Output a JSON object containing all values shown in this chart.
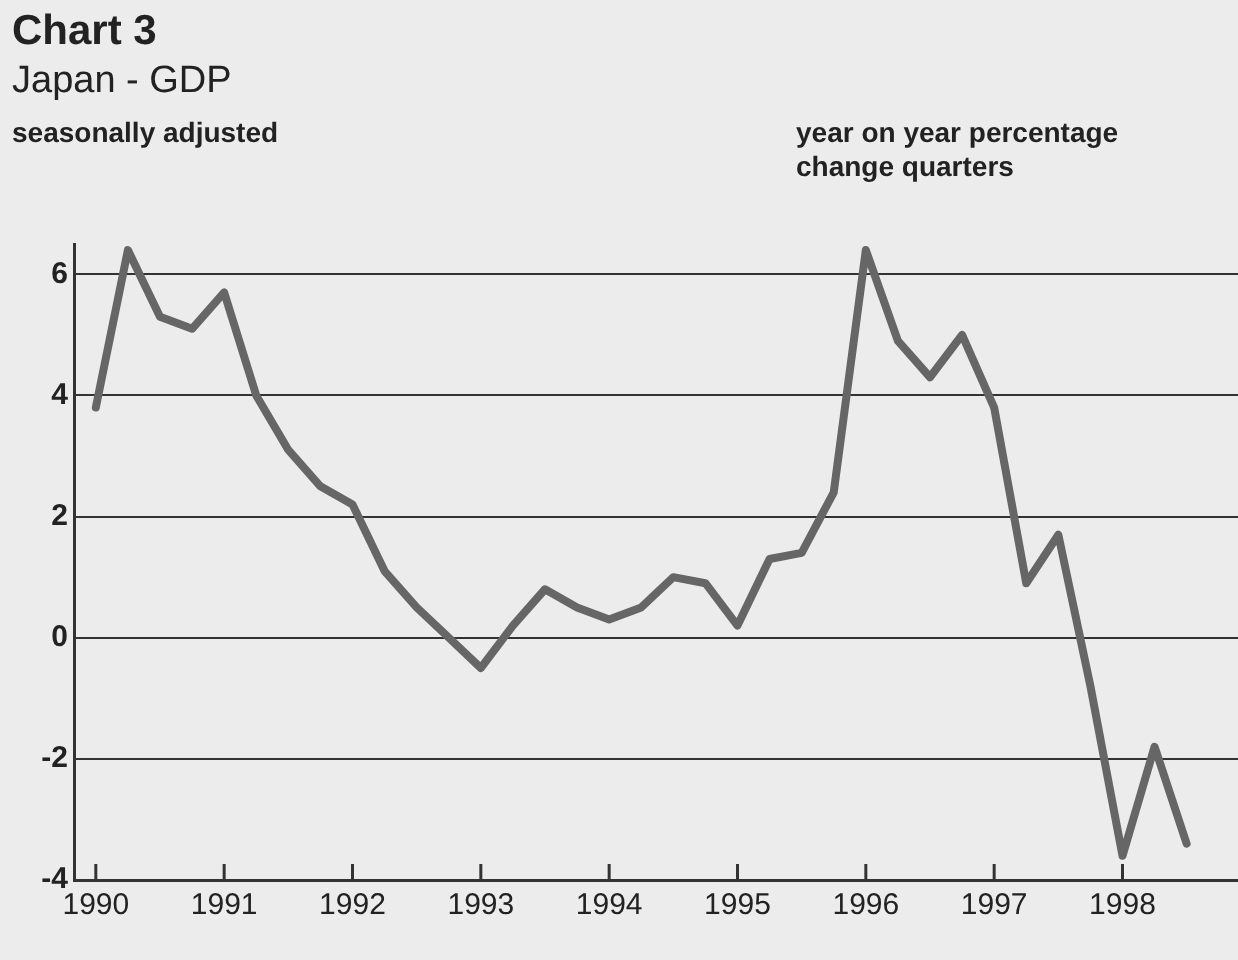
{
  "chart_data": {
    "type": "line",
    "title": "Chart 3",
    "subtitle": "Japan - GDP",
    "ylabel": "seasonally adjusted",
    "annotations": [
      "year on year percentage change quarters"
    ],
    "x": [
      1990,
      1990.25,
      1990.5,
      1990.75,
      1991,
      1991.25,
      1991.5,
      1991.75,
      1992,
      1992.25,
      1992.5,
      1992.75,
      1993,
      1993.25,
      1993.5,
      1993.75,
      1994,
      1994.25,
      1994.5,
      1994.75,
      1995,
      1995.25,
      1995.5,
      1995.75,
      1996,
      1996.25,
      1996.5,
      1996.75,
      1997,
      1997.25,
      1997.5,
      1997.75,
      1998,
      1998.25,
      1998.5
    ],
    "series": [
      {
        "color": "#666666",
        "values": [
          3.8,
          6.4,
          5.3,
          5.1,
          5.7,
          4.0,
          3.1,
          2.5,
          2.2,
          1.1,
          0.5,
          0.0,
          -0.5,
          0.2,
          0.8,
          0.5,
          0.3,
          0.5,
          1.0,
          0.9,
          0.2,
          1.3,
          1.4,
          2.4,
          6.4,
          4.9,
          4.3,
          5.0,
          3.8,
          0.9,
          1.7,
          -0.8,
          -3.6,
          -1.8,
          -3.4
        ]
      }
    ],
    "xlim": [
      1989.83,
      1998.9
    ],
    "xticks": [
      1990,
      1991,
      1992,
      1993,
      1994,
      1995,
      1996,
      1997,
      1998
    ],
    "ylim": [
      -4,
      6.5
    ],
    "yticks": [
      -4,
      -2,
      0,
      2,
      4,
      6
    ],
    "grid": "y",
    "legend": false,
    "marker": "none",
    "line_style": "solid"
  }
}
